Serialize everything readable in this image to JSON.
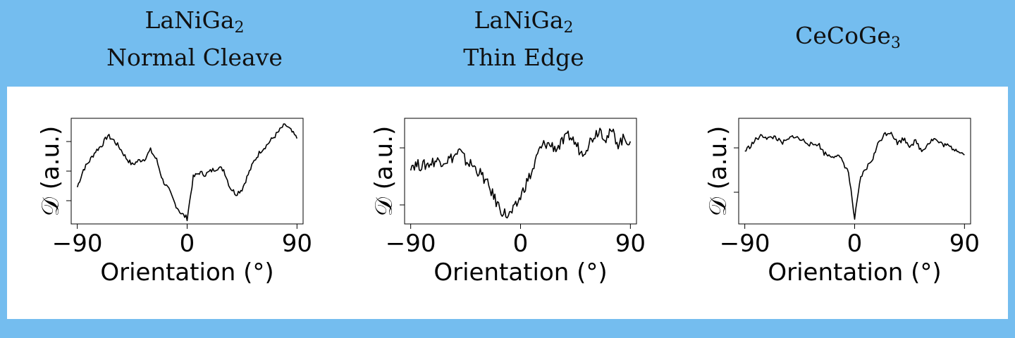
{
  "titles": [
    {
      "formula_main": "LaNiGa",
      "formula_sub": "2",
      "line2": "Normal Cleave"
    },
    {
      "formula_main": "LaNiGa",
      "formula_sub": "2",
      "line2": "Thin Edge"
    },
    {
      "formula_main": "CeCoGe",
      "formula_sub": "3",
      "line2": ""
    }
  ],
  "colors": {
    "header_bg": "#74bdef",
    "panel_bg": "#ffffff",
    "line": "#000000"
  },
  "chart_data": [
    {
      "type": "line",
      "title": "LaNiGa2 Normal Cleave",
      "xlabel": "Orientation (°)",
      "ylabel": "𝒟 (a.u.)",
      "xticks": [
        "−90",
        "0",
        "90"
      ],
      "xlim": [
        -95,
        95
      ],
      "ylim": [
        0,
        1
      ],
      "series": [
        {
          "x": [
            -90,
            -85,
            -80,
            -75,
            -70,
            -65,
            -60,
            -55,
            -50,
            -45,
            -40,
            -35,
            -30,
            -25,
            -20,
            -15,
            -10,
            -5,
            0,
            5,
            10,
            15,
            20,
            25,
            30,
            35,
            40,
            45,
            50,
            55,
            60,
            65,
            70,
            75,
            80,
            85,
            90
          ],
          "y": [
            0.35,
            0.53,
            0.62,
            0.72,
            0.78,
            0.88,
            0.83,
            0.75,
            0.65,
            0.58,
            0.62,
            0.64,
            0.73,
            0.63,
            0.42,
            0.32,
            0.18,
            0.08,
            0.03,
            0.45,
            0.5,
            0.48,
            0.52,
            0.55,
            0.53,
            0.35,
            0.28,
            0.33,
            0.48,
            0.62,
            0.72,
            0.78,
            0.85,
            0.92,
            1.0,
            0.93,
            0.85
          ]
        }
      ]
    },
    {
      "type": "line",
      "title": "LaNiGa2 Thin Edge",
      "xlabel": "Orientation (°)",
      "ylabel": "𝒟 (a.u.)",
      "xticks": [
        "−90",
        "0",
        "90"
      ],
      "xlim": [
        -95,
        95
      ],
      "ylim": [
        0,
        1
      ],
      "series": [
        {
          "x": [
            -90,
            -85,
            -80,
            -75,
            -70,
            -65,
            -60,
            -55,
            -50,
            -45,
            -40,
            -35,
            -30,
            -25,
            -20,
            -15,
            -10,
            -5,
            0,
            5,
            10,
            15,
            20,
            25,
            30,
            35,
            40,
            45,
            50,
            55,
            60,
            65,
            70,
            75,
            80,
            85,
            90
          ],
          "y": [
            0.58,
            0.58,
            0.57,
            0.59,
            0.62,
            0.62,
            0.63,
            0.66,
            0.72,
            0.62,
            0.58,
            0.52,
            0.44,
            0.33,
            0.2,
            0.1,
            0.05,
            0.12,
            0.25,
            0.4,
            0.52,
            0.72,
            0.8,
            0.78,
            0.75,
            0.82,
            0.88,
            0.8,
            0.7,
            0.78,
            0.88,
            0.95,
            0.85,
            0.92,
            0.8,
            0.85,
            0.82
          ]
        }
      ]
    },
    {
      "type": "line",
      "title": "CeCoGe3",
      "xlabel": "Orientation (°)",
      "ylabel": "𝒟 (a.u.)",
      "xticks": [
        "−90",
        "0",
        "90"
      ],
      "xlim": [
        -95,
        95
      ],
      "ylim": [
        0,
        1
      ],
      "series": [
        {
          "x": [
            -90,
            -85,
            -80,
            -75,
            -70,
            -65,
            -60,
            -55,
            -50,
            -45,
            -40,
            -35,
            -30,
            -25,
            -20,
            -15,
            -10,
            -5,
            0,
            5,
            10,
            15,
            20,
            25,
            30,
            35,
            40,
            45,
            50,
            55,
            60,
            65,
            70,
            75,
            80,
            85,
            90
          ],
          "y": [
            0.72,
            0.78,
            0.85,
            0.88,
            0.85,
            0.87,
            0.8,
            0.83,
            0.88,
            0.84,
            0.82,
            0.78,
            0.8,
            0.7,
            0.67,
            0.68,
            0.62,
            0.5,
            0.02,
            0.45,
            0.55,
            0.65,
            0.82,
            0.9,
            0.92,
            0.8,
            0.85,
            0.78,
            0.82,
            0.72,
            0.8,
            0.85,
            0.8,
            0.78,
            0.75,
            0.73,
            0.68
          ]
        }
      ]
    }
  ]
}
